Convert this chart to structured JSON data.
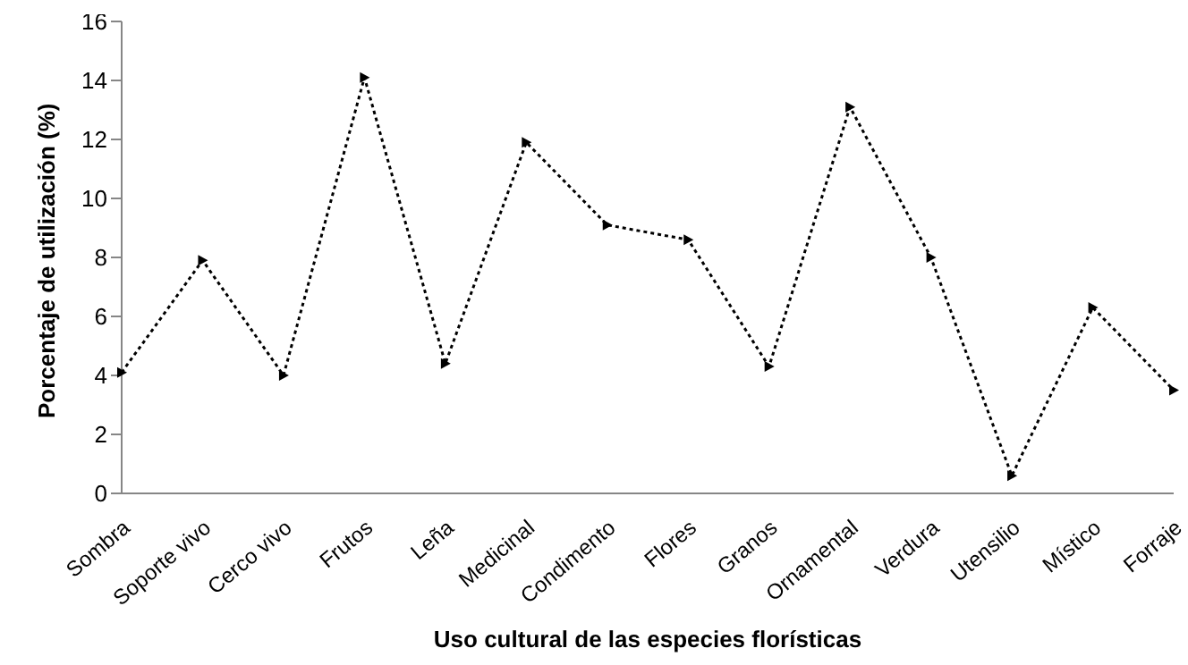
{
  "chart_data": {
    "type": "line",
    "xlabel": "Uso cultural de las especies florísticas",
    "ylabel": "Porcentaje de utilización (%)",
    "categories": [
      "Sombra",
      "Soporte vivo",
      "Cerco vivo",
      "Frutos",
      "Leña",
      "Medicinal",
      "Condimento",
      "Flores",
      "Granos",
      "Ornamental",
      "Verdura",
      "Utensilio",
      "Místico",
      "Forraje"
    ],
    "series": [
      {
        "color": "#000000",
        "values": [
          4.1,
          7.9,
          4.0,
          14.1,
          4.4,
          11.9,
          9.1,
          8.6,
          4.3,
          13.1,
          8.0,
          0.6,
          6.3,
          3.5
        ]
      }
    ],
    "ylim": [
      0,
      16
    ],
    "yticks": [
      0,
      2,
      4,
      6,
      8,
      10,
      12,
      14,
      16
    ],
    "grid": false,
    "legend": false,
    "marker": "triangle",
    "line_style": "dotted"
  }
}
